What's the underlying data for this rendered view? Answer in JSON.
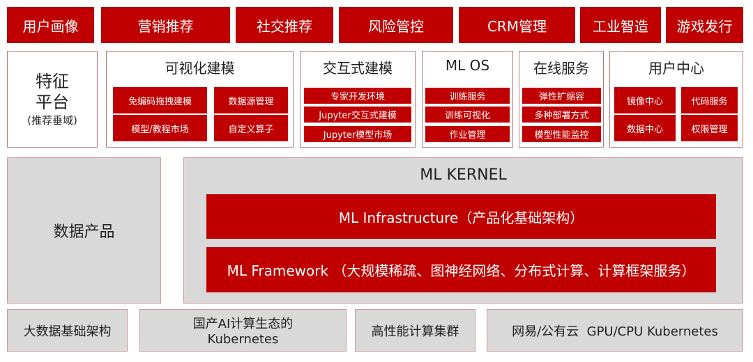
{
  "top_row": [
    "用户画像",
    "营销推荐",
    "社交推荐",
    "风险管控",
    "CRM管理",
    "工业智造",
    "游戏发行"
  ],
  "feature": {
    "title1": "特征",
    "title2": "平台",
    "sub": "(推荐垂域)"
  },
  "visual": {
    "title": "可视化建模",
    "items": [
      "免编码拖拽建模",
      "数据源管理",
      "模型/教程市场",
      "自定义算子"
    ]
  },
  "interactive": {
    "title": "交互式建模",
    "items": [
      "专家开发环境",
      "Jupyter交互式建模",
      "Jupyter模型市场"
    ]
  },
  "mlos": {
    "title": "ML OS",
    "items": [
      "训练服务",
      "训练可视化",
      "作业管理"
    ]
  },
  "online": {
    "title": "在线服务",
    "items": [
      "弹性扩缩容",
      "多种部署方式",
      "模型性能监控"
    ]
  },
  "user_center": {
    "title": "用户中心",
    "items": [
      "镜像中心",
      "代码服务",
      "数据中心",
      "权限管理"
    ]
  },
  "data_product": "数据产品",
  "kernel": {
    "title": "ML KERNEL",
    "infra": "ML Infrastructure（产品化基础架构）",
    "framework": "ML Framework （大规模稀疏、图神经网络、分布式计算、计算框架服务）"
  },
  "bottom": [
    "大数据基础架构",
    "国产AI计算生态的",
    "Kubernetes",
    "高性能计算集群",
    "网易/公有云  GPU/CPU Kubernetes"
  ],
  "colors": {
    "accent": "#c00000",
    "gray": "#d9d9d9"
  }
}
